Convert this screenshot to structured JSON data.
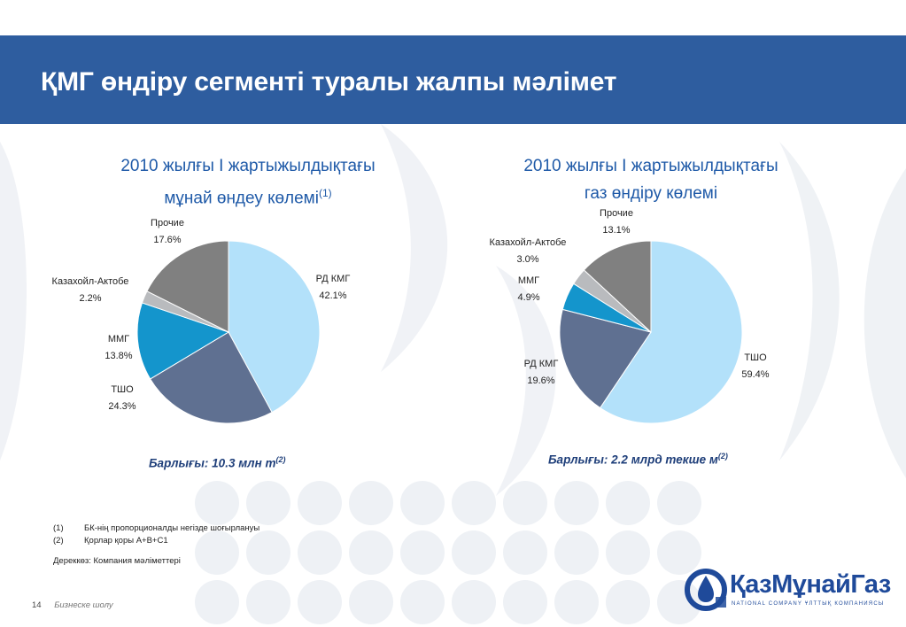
{
  "title": "ҚМГ өндіру сегменті туралы жалпы мәлімет",
  "chart_data": [
    {
      "type": "pie",
      "title_line1": "2010 жылғы I жартыжылдықтағы",
      "title_line2": "мұнай өндеу көлемі",
      "title_note": "(1)",
      "slices": [
        {
          "label": "РД КМГ",
          "value": 42.1,
          "display": "42.1%",
          "color": "#b3e1fa"
        },
        {
          "label": "ТШО",
          "value": 24.3,
          "display": "24.3%",
          "color": "#5f7091"
        },
        {
          "label": "ММГ",
          "value": 13.8,
          "display": "13.8%",
          "color": "#1495cc"
        },
        {
          "label": "Казахойл-Актобе",
          "value": 2.2,
          "display": "2.2%",
          "color": "#b9bbbe"
        },
        {
          "label": "Прочие",
          "value": 17.6,
          "display": "17.6%",
          "color": "#808080"
        }
      ],
      "total": "Барлығы: 10.3 млн т",
      "total_note": "(2)"
    },
    {
      "type": "pie",
      "title_line1": "2010 жылғы I жартыжылдықтағы",
      "title_line2": "газ өндіру көлемі",
      "title_note": "",
      "slices": [
        {
          "label": "ТШО",
          "value": 59.4,
          "display": "59.4%",
          "color": "#b3e1fa"
        },
        {
          "label": "РД КМГ",
          "value": 19.6,
          "display": "19.6%",
          "color": "#5f7091"
        },
        {
          "label": "ММГ",
          "value": 4.9,
          "display": "4.9%",
          "color": "#1495cc"
        },
        {
          "label": "Казахойл-Актобе",
          "value": 3.0,
          "display": "3.0%",
          "color": "#b9bbbe"
        },
        {
          "label": "Прочие",
          "value": 13.1,
          "display": "13.1%",
          "color": "#808080"
        }
      ],
      "total": "Барлығы: 2.2 млрд текше м",
      "total_note": "(2)"
    }
  ],
  "footnotes": [
    {
      "num": "(1)",
      "text": "БК-нің пропорционалды негізде шоғырлануы"
    },
    {
      "num": "(2)",
      "text": "Қорлар қоры А+В+С1"
    }
  ],
  "source": "Дереккөз:  Компания мәліметтері",
  "footer": {
    "page": "14",
    "section": "Бизнеске шолу"
  },
  "logo": {
    "word": "ҚазМұнайГаз",
    "tagline": "NATIONAL COMPANY  ҰЛТТЫҚ КОМПАНИЯСЫ"
  }
}
